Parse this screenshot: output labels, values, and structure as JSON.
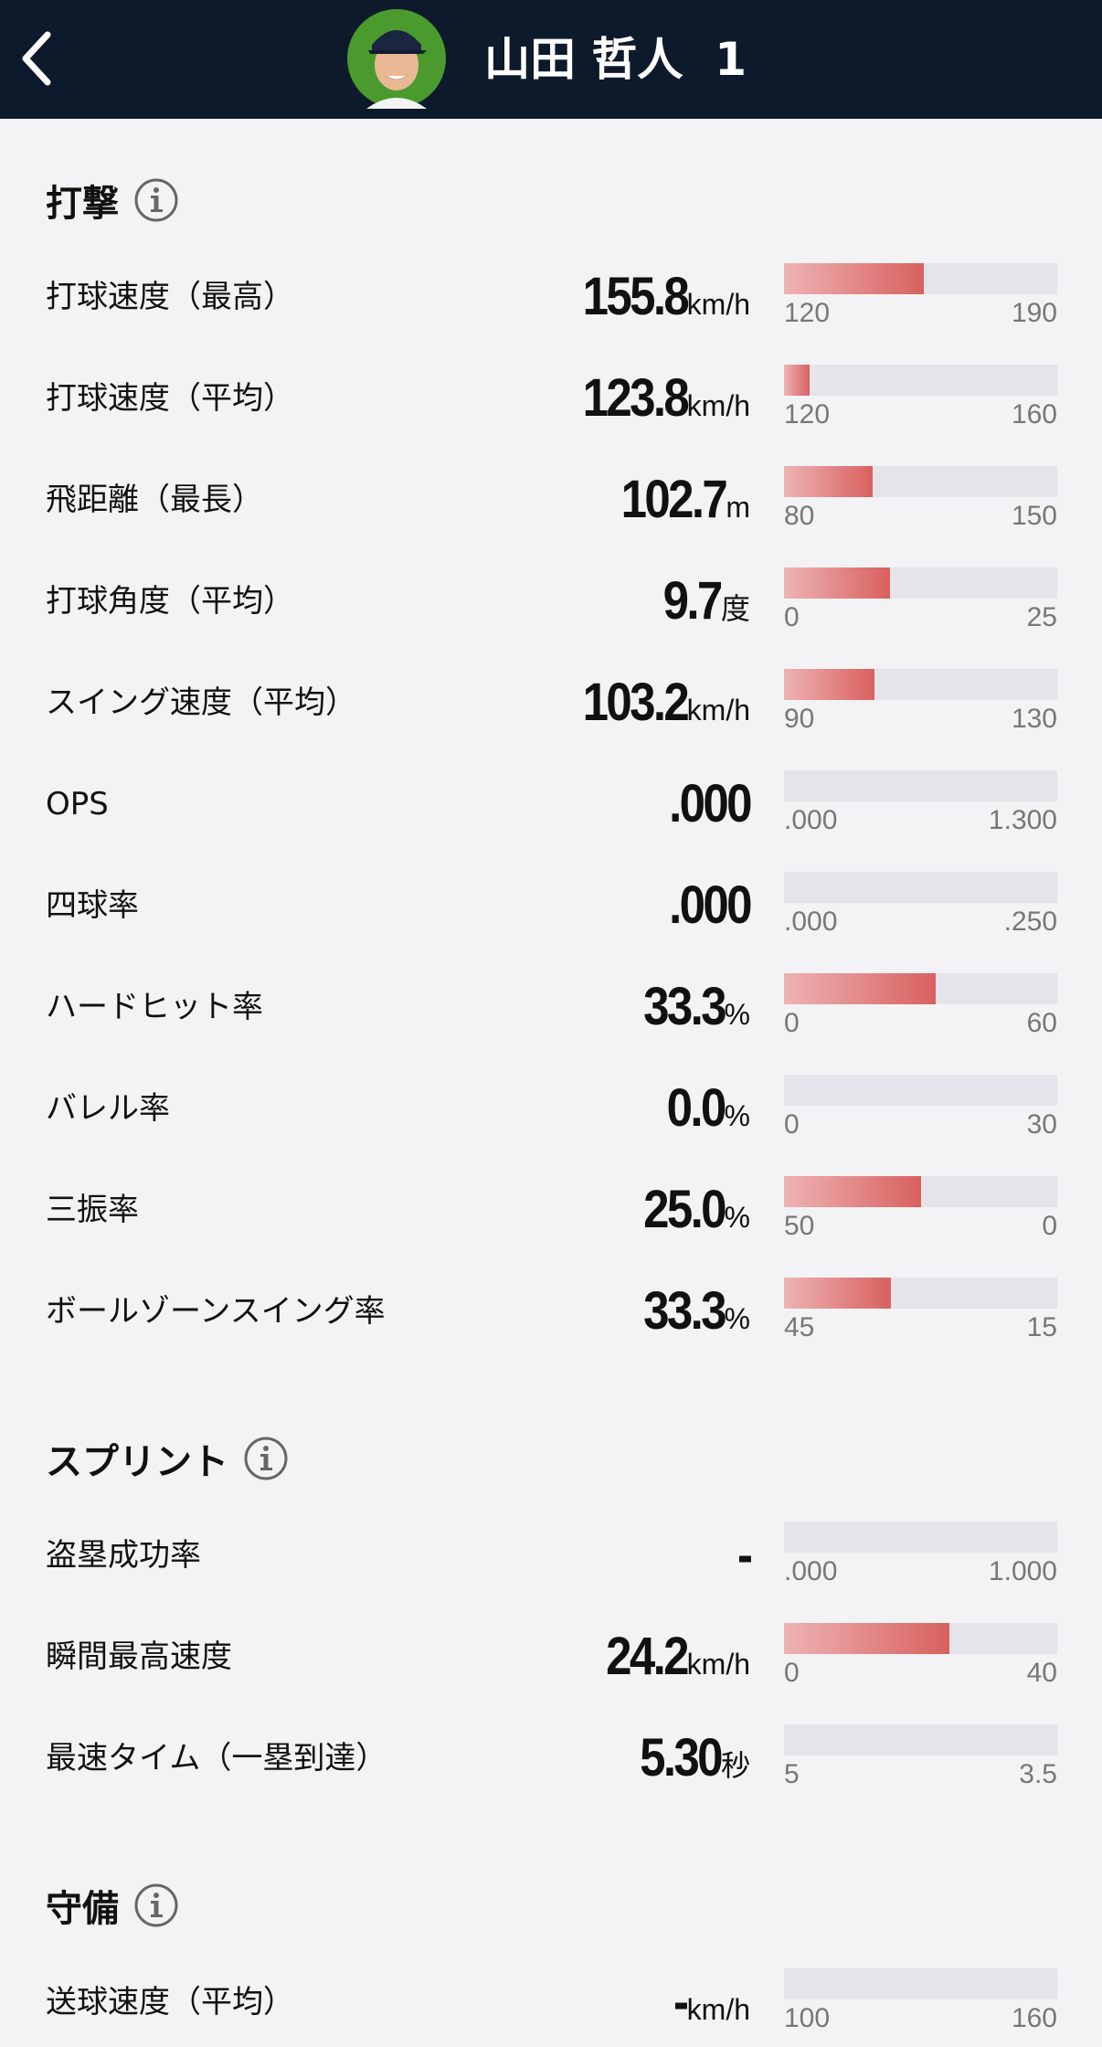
{
  "header": {
    "name": "山田 哲人",
    "number": "1"
  },
  "sections": [
    {
      "title": "打撃",
      "rows": [
        {
          "label": "打球速度（最高）",
          "value": "155.8",
          "unit": "km/h",
          "min": "120",
          "max": "190"
        },
        {
          "label": "打球速度（平均）",
          "value": "123.8",
          "unit": "km/h",
          "min": "120",
          "max": "160"
        },
        {
          "label": "飛距離（最長）",
          "value": "102.7",
          "unit": "m",
          "min": "80",
          "max": "150"
        },
        {
          "label": "打球角度（平均）",
          "value": "9.7",
          "unit": "度",
          "min": "0",
          "max": "25"
        },
        {
          "label": "スイング速度（平均）",
          "value": "103.2",
          "unit": "km/h",
          "min": "90",
          "max": "130"
        },
        {
          "label": "OPS",
          "value": ".000",
          "min": ".000",
          "max": "1.300"
        },
        {
          "label": "四球率",
          "value": ".000",
          "min": ".000",
          "max": ".250"
        },
        {
          "label": "ハードヒット率",
          "value": "33.3",
          "unit": "%",
          "min": "0",
          "max": "60"
        },
        {
          "label": "バレル率",
          "value": "0.0",
          "unit": "%",
          "min": "0",
          "max": "30"
        },
        {
          "label": "三振率",
          "value": "25.0",
          "unit": "%",
          "min": "50",
          "max": "0"
        },
        {
          "label": "ボールゾーンスイング率",
          "value": "33.3",
          "unit": "%",
          "min": "45",
          "max": "15"
        }
      ]
    },
    {
      "title": "スプリント",
      "rows": [
        {
          "label": "盗塁成功率",
          "value": "-",
          "min": ".000",
          "max": "1.000"
        },
        {
          "label": "瞬間最高速度",
          "value": "24.2",
          "unit": "km/h",
          "min": "0",
          "max": "40"
        },
        {
          "label": "最速タイム（一塁到達）",
          "value": "5.30",
          "unit": "秒",
          "min": "5",
          "max": "3.5"
        }
      ]
    },
    {
      "title": "守備",
      "rows": [
        {
          "label": "送球速度（平均）",
          "value": "-",
          "unit": "km/h",
          "min": "100",
          "max": "160"
        }
      ]
    }
  ]
}
